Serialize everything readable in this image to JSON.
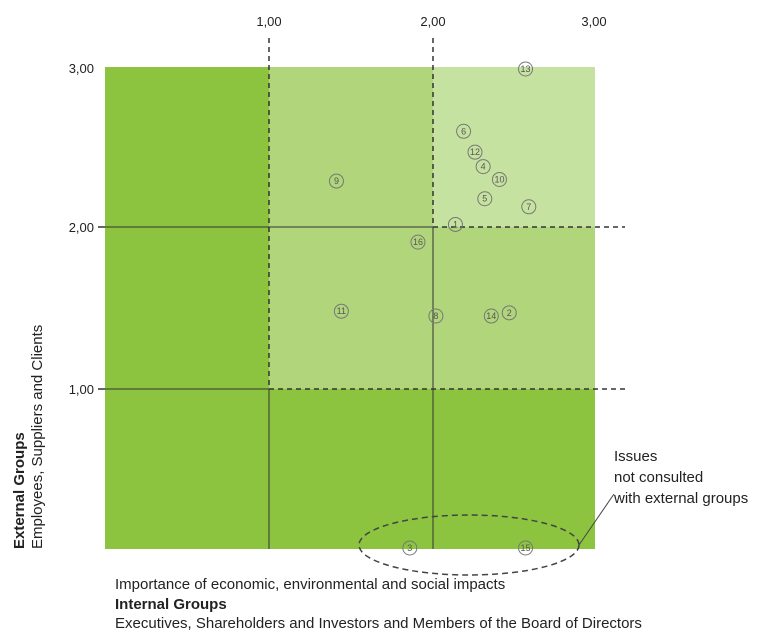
{
  "chart_data": {
    "type": "scatter",
    "x_ticks": [
      "1,00",
      "2,00",
      "3,00"
    ],
    "y_ticks": [
      "3,00",
      "2,00",
      "1,00"
    ],
    "xlim": [
      0,
      3
    ],
    "ylim": [
      0,
      3
    ],
    "xlabel": {
      "line1": "Importance of economic, environmental and social impacts",
      "line2": "Internal Groups",
      "line3": "Executives, Shareholders and Investors and Members of the Board of Directors"
    },
    "ylabel": {
      "line1": "External Groups",
      "line2": "Employees, Suppliers and Clients"
    },
    "points": [
      {
        "label": "1",
        "x": 2.15,
        "y": 2.02
      },
      {
        "label": "2",
        "x": 2.48,
        "y": 1.47
      },
      {
        "label": "3",
        "x": 1.87,
        "y": 0.0
      },
      {
        "label": "4",
        "x": 2.32,
        "y": 2.38
      },
      {
        "label": "5",
        "x": 2.33,
        "y": 2.18
      },
      {
        "label": "6",
        "x": 2.2,
        "y": 2.6
      },
      {
        "label": "7",
        "x": 2.6,
        "y": 2.13
      },
      {
        "label": "8",
        "x": 2.03,
        "y": 1.45
      },
      {
        "label": "9",
        "x": 1.42,
        "y": 2.29
      },
      {
        "label": "10",
        "x": 2.42,
        "y": 2.3
      },
      {
        "label": "11",
        "x": 1.45,
        "y": 1.48
      },
      {
        "label": "12",
        "x": 2.27,
        "y": 2.47
      },
      {
        "label": "13",
        "x": 2.58,
        "y": 3.0
      },
      {
        "label": "14",
        "x": 2.37,
        "y": 1.45
      },
      {
        "label": "15",
        "x": 2.58,
        "y": 0.0
      },
      {
        "label": "16",
        "x": 1.92,
        "y": 1.91
      }
    ],
    "annotation": {
      "line1": "Issues",
      "line2": "not consulted",
      "line3": "with external groups"
    },
    "colors": {
      "dark": "#8cc43f",
      "medium": "#b0d57b",
      "light": "#c6e2a0",
      "point_stroke": "#777777"
    },
    "grid": "dashed at 1 and 2 on both axes"
  }
}
